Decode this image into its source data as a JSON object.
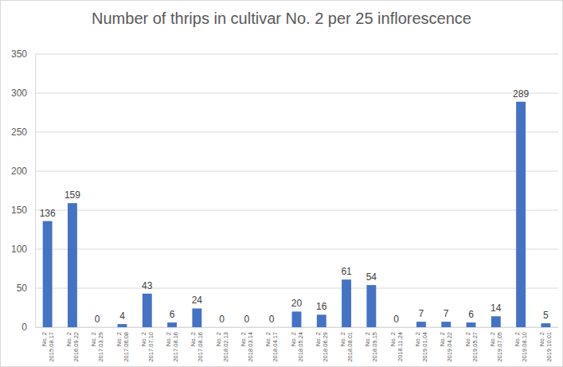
{
  "chart_data": {
    "type": "bar",
    "title": "Number of thrips in cultivar No. 2 per 25 inflorescence",
    "categories": [
      "No. 2 2015.08.17",
      "No. 2 2016.09.22",
      "No. 2 2017.03.29",
      "No. 2 2017.06.08",
      "No. 2 2017.07.10",
      "No. 2 2017.08.16",
      "No. 2 2017.08.16",
      "No. 2 2018.02.13",
      "No. 2 2018.03.14",
      "No. 2 2018.04.17",
      "No. 2 2018.05.24",
      "No. 2 2018.06.29",
      "No. 2 2018.08.01",
      "No. 2 2018.09.15",
      "No. 2 2018.11.24",
      "No. 2 2019.01.04",
      "No. 2 2019.04.22",
      "No. 2 2019.05.27",
      "No. 2 2019.07.05",
      "No. 2 2019.08.10",
      "No. 2 2019.10.01"
    ],
    "values": [
      136,
      159,
      0,
      4,
      43,
      6,
      24,
      0,
      0,
      0,
      20,
      16,
      61,
      54,
      0,
      7,
      7,
      6,
      14,
      289,
      5
    ],
    "color": "#4472c4",
    "ylim": [
      0,
      350
    ],
    "yticks": [
      0,
      50,
      100,
      150,
      200,
      250,
      300,
      350
    ],
    "grid": true,
    "data_labels": true
  }
}
